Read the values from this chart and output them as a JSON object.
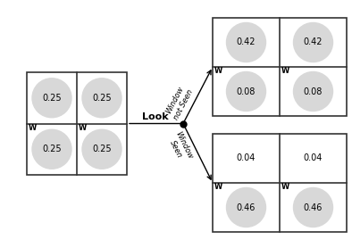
{
  "bg_color": "#ffffff",
  "grid_color": "#333333",
  "circle_color": "#d8d8d8",
  "left_grid": {
    "cells": [
      {
        "row": 0,
        "col": 0,
        "val": "0.25",
        "has_circle": true,
        "has_W": false
      },
      {
        "row": 0,
        "col": 1,
        "val": "0.25",
        "has_circle": true,
        "has_W": false
      },
      {
        "row": 1,
        "col": 0,
        "val": "0.25",
        "has_circle": true,
        "has_W": true
      },
      {
        "row": 1,
        "col": 1,
        "val": "0.25",
        "has_circle": true,
        "has_W": true
      }
    ]
  },
  "top_right_grid": {
    "cells": [
      {
        "row": 0,
        "col": 0,
        "val": "0.42",
        "has_circle": true,
        "has_W": false
      },
      {
        "row": 0,
        "col": 1,
        "val": "0.42",
        "has_circle": true,
        "has_W": false
      },
      {
        "row": 1,
        "col": 0,
        "val": "0.08",
        "has_circle": true,
        "has_W": true
      },
      {
        "row": 1,
        "col": 1,
        "val": "0.08",
        "has_circle": true,
        "has_W": true
      }
    ]
  },
  "bottom_right_grid": {
    "cells": [
      {
        "row": 0,
        "col": 0,
        "val": "0.04",
        "has_circle": false,
        "has_W": false
      },
      {
        "row": 0,
        "col": 1,
        "val": "0.04",
        "has_circle": false,
        "has_W": false
      },
      {
        "row": 1,
        "col": 0,
        "val": "0.46",
        "has_circle": true,
        "has_W": true
      },
      {
        "row": 1,
        "col": 1,
        "val": "0.46",
        "has_circle": true,
        "has_W": true
      }
    ]
  },
  "top_label": "Window\nnot Seen",
  "bottom_label": "Window\nSeen",
  "look_label": "Look",
  "font_size_val": 7,
  "font_size_W": 6,
  "font_size_label": 6,
  "font_size_look": 8
}
